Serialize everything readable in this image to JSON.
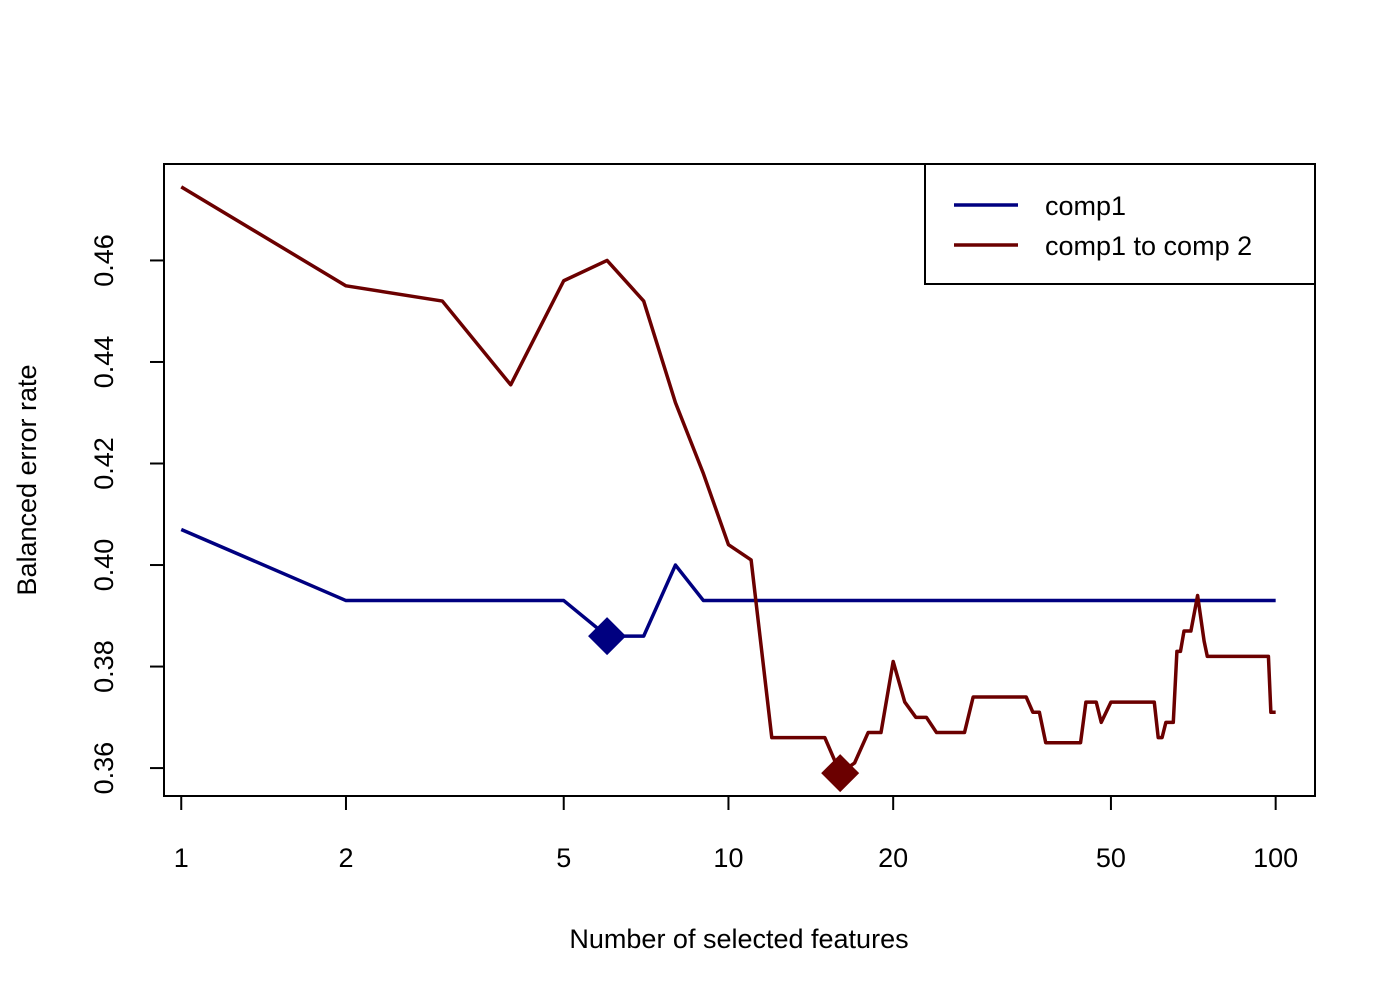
{
  "chart_data": {
    "type": "line",
    "title": "",
    "xlabel": "Number of selected features",
    "ylabel": "Balanced error rate",
    "x_scale": "log",
    "xlim": [
      0.93,
      118
    ],
    "ylim": [
      0.3545,
      0.479
    ],
    "x_ticks": [
      1,
      2,
      5,
      10,
      20,
      50,
      100
    ],
    "x_tick_labels": [
      "1",
      "2",
      "5",
      "10",
      "20",
      "50",
      "100"
    ],
    "y_ticks": [
      0.36,
      0.38,
      0.4,
      0.42,
      0.44,
      0.46
    ],
    "y_tick_labels": [
      "0.36",
      "0.38",
      "0.40",
      "0.42",
      "0.44",
      "0.46"
    ],
    "grid": false,
    "legend_position": "top-right",
    "series": [
      {
        "name": "comp1",
        "color": "#000080",
        "x": [
          1,
          2,
          5,
          6,
          7,
          8,
          9,
          100
        ],
        "y": [
          0.407,
          0.393,
          0.393,
          0.386,
          0.386,
          0.4,
          0.393,
          0.393
        ],
        "optimum": {
          "x": 6,
          "y": 0.386
        }
      },
      {
        "name": "comp1 to comp 2",
        "color": "#6b0000",
        "x": [
          1,
          2,
          3,
          4,
          5,
          6,
          7,
          8,
          9,
          10,
          11,
          12,
          13,
          14,
          15,
          16,
          17,
          18,
          19,
          20,
          21,
          22,
          23,
          24,
          25,
          26,
          27,
          28,
          30,
          35,
          36,
          37,
          38,
          40,
          44,
          45,
          46,
          47,
          48,
          50,
          55,
          60,
          61,
          62,
          63,
          64,
          65,
          66,
          67,
          68,
          69,
          70,
          72,
          74,
          75,
          76,
          77,
          80,
          90,
          97,
          98,
          100
        ],
        "y": [
          0.4745,
          0.455,
          0.452,
          0.4355,
          0.456,
          0.46,
          0.452,
          0.432,
          0.418,
          0.404,
          0.401,
          0.366,
          0.366,
          0.366,
          0.366,
          0.359,
          0.361,
          0.367,
          0.367,
          0.381,
          0.373,
          0.37,
          0.37,
          0.367,
          0.367,
          0.367,
          0.367,
          0.374,
          0.374,
          0.374,
          0.371,
          0.371,
          0.365,
          0.365,
          0.365,
          0.373,
          0.373,
          0.373,
          0.369,
          0.373,
          0.373,
          0.373,
          0.366,
          0.366,
          0.369,
          0.369,
          0.369,
          0.383,
          0.383,
          0.387,
          0.387,
          0.387,
          0.394,
          0.385,
          0.382,
          0.382,
          0.382,
          0.382,
          0.382,
          0.382,
          0.371,
          0.371
        ],
        "optimum": {
          "x": 16,
          "y": 0.359
        }
      }
    ]
  }
}
